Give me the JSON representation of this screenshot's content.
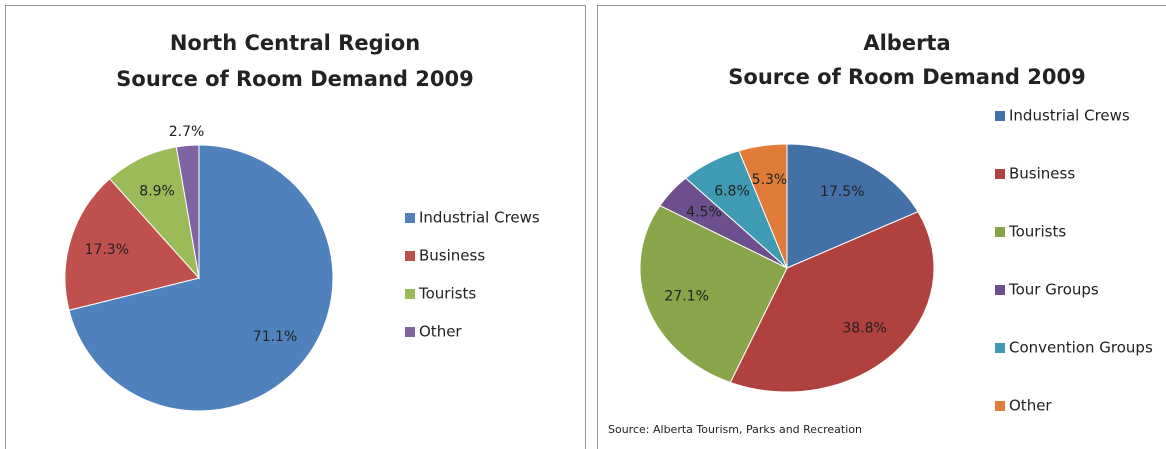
{
  "chart_data": [
    {
      "type": "pie",
      "title": [
        "North Central Region",
        "Source of Room Demand 2009"
      ],
      "categories": [
        "Industrial Crews",
        "Business",
        "Tourists",
        "Other"
      ],
      "values": [
        71.1,
        17.3,
        8.9,
        2.7
      ],
      "value_labels": [
        "71.1%",
        "17.3%",
        "8.9%",
        "2.7%"
      ],
      "colors": [
        "#4f81bd",
        "#c0504d",
        "#9bbb59",
        "#8064a2"
      ],
      "legend": "right"
    },
    {
      "type": "pie",
      "title": [
        "Alberta",
        "Source of Room Demand 2009"
      ],
      "categories": [
        "Industrial Crews",
        "Business",
        "Tourists",
        "Tour Groups",
        "Convention Groups",
        "Other"
      ],
      "values": [
        17.5,
        38.8,
        27.1,
        4.5,
        6.8,
        5.3
      ],
      "value_labels": [
        "17.5%",
        "38.8%",
        "27.1%",
        "4.5%",
        "6.8%",
        "5.3%"
      ],
      "colors": [
        "#4470a8",
        "#b0413e",
        "#88a54a",
        "#6c4f8c",
        "#3f9ab3",
        "#e07b39"
      ],
      "legend": "right",
      "source": "Source: Alberta Tourism, Parks and Recreation"
    }
  ]
}
